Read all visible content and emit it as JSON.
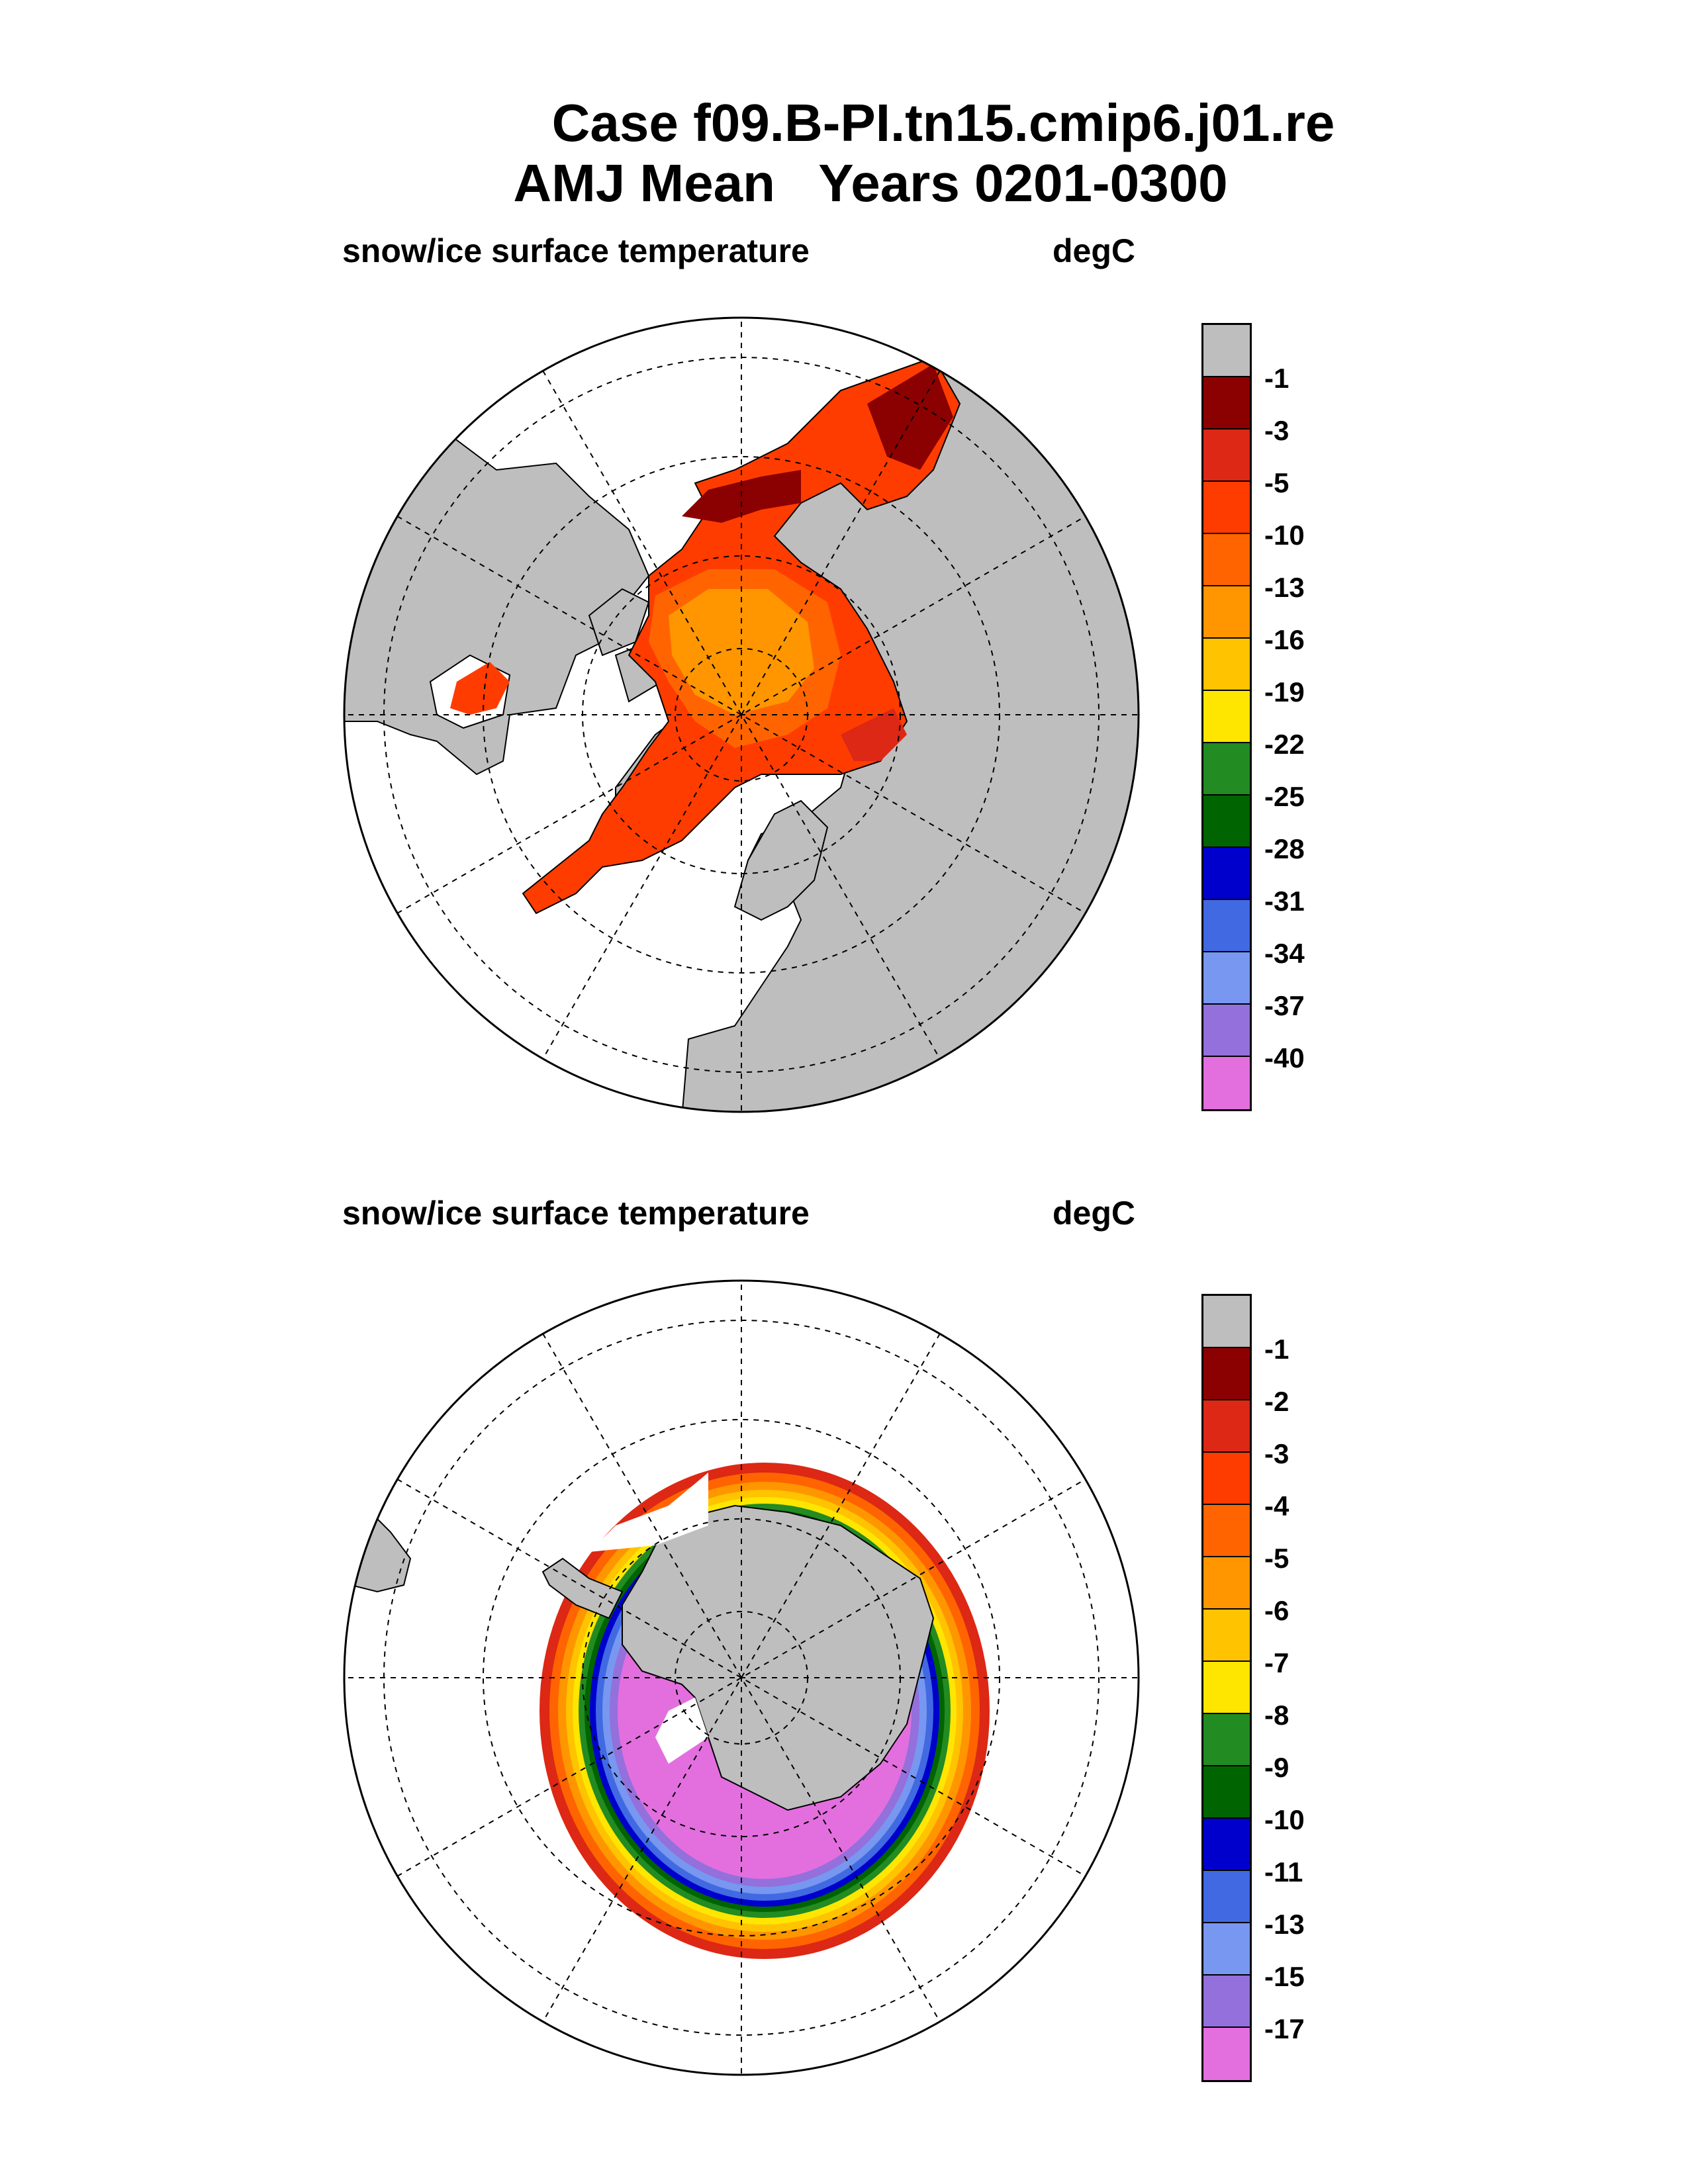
{
  "title": {
    "line1": "Case f09.B-PI.tn15.cmip6.j01.re",
    "line2": "AMJ Mean   Years 0201-0300"
  },
  "panels": [
    {
      "hemisphere": "north",
      "variable": "snow/ice surface temperature",
      "units": "degC",
      "legend_labels": [
        "-1",
        "-3",
        "-5",
        "-10",
        "-13",
        "-16",
        "-19",
        "-22",
        "-25",
        "-28",
        "-31",
        "-34",
        "-37",
        "-40"
      ]
    },
    {
      "hemisphere": "south",
      "variable": "snow/ice surface temperature",
      "units": "degC",
      "legend_labels": [
        "-1",
        "-2",
        "-3",
        "-4",
        "-5",
        "-6",
        "-7",
        "-8",
        "-9",
        "-10",
        "-11",
        "-13",
        "-15",
        "-17"
      ]
    }
  ],
  "colors": {
    "land": "#bebebe",
    "palette": [
      "#bebebe",
      "#8b0000",
      "#dc2814",
      "#ff3c00",
      "#ff6400",
      "#ff9600",
      "#ffc300",
      "#ffe600",
      "#228b22",
      "#006400",
      "#0000cd",
      "#4169e1",
      "#7797f0",
      "#9370db",
      "#e36fdf"
    ]
  }
}
